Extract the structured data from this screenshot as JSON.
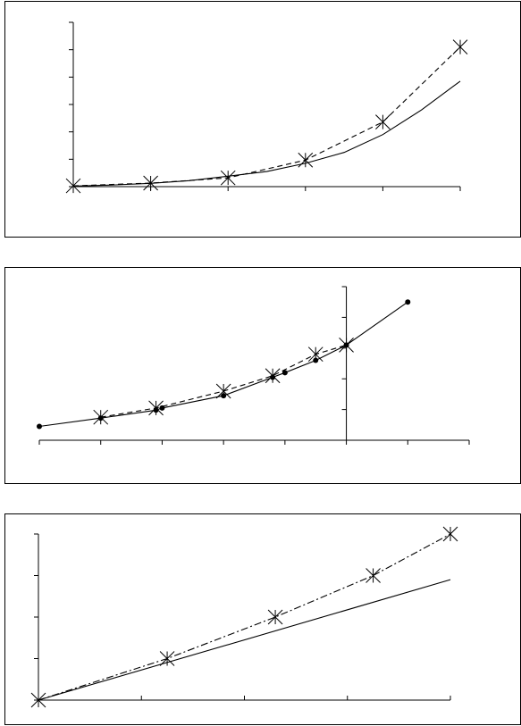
{
  "chart_data": [
    {
      "type": "line",
      "title": "",
      "xlabel": "",
      "ylabel": "",
      "grid": false,
      "legend": "none",
      "xlim": [
        0,
        5
      ],
      "ylim": [
        0,
        6
      ],
      "x_ticks": [
        0,
        1,
        2,
        3,
        4,
        5
      ],
      "y_ticks": [
        0,
        1,
        2,
        3,
        4,
        5,
        6
      ],
      "series": [
        {
          "style": "solid",
          "marker": "none",
          "x": [
            0,
            0.5,
            1,
            1.5,
            2,
            2.5,
            3,
            3.5,
            4,
            4.5,
            5
          ],
          "y": [
            0.02,
            0.06,
            0.12,
            0.22,
            0.38,
            0.55,
            0.85,
            1.25,
            1.9,
            2.8,
            3.85
          ]
        },
        {
          "style": "dashed",
          "marker": "star",
          "x": [
            0,
            1,
            2,
            3,
            4,
            5
          ],
          "y": [
            0.03,
            0.13,
            0.32,
            0.97,
            2.36,
            5.1
          ]
        }
      ]
    },
    {
      "type": "line",
      "title": "",
      "xlabel": "",
      "ylabel": "",
      "grid": false,
      "legend": "none",
      "xlim": [
        -5,
        2
      ],
      "ylim": [
        0,
        5
      ],
      "x_ticks": [
        -5,
        -4,
        -3,
        -2,
        -1,
        0,
        1,
        2
      ],
      "y_ticks": [
        0,
        1,
        2,
        3,
        4,
        5
      ],
      "series": [
        {
          "style": "solid",
          "marker": "dot",
          "x": [
            -5,
            -4,
            -3.1,
            -3,
            -2,
            -1.2,
            -1,
            -0.5,
            0,
            1
          ],
          "y": [
            0.45,
            0.72,
            0.98,
            1.05,
            1.45,
            2.05,
            2.2,
            2.6,
            3.1,
            4.5
          ]
        },
        {
          "style": "dashed",
          "marker": "star",
          "x": [
            -4,
            -3.1,
            -2,
            -1.2,
            -0.5,
            0
          ],
          "y": [
            0.75,
            1.05,
            1.6,
            2.1,
            2.8,
            3.1
          ]
        }
      ]
    },
    {
      "type": "line",
      "title": "",
      "xlabel": "",
      "ylabel": "",
      "grid": false,
      "legend": "none",
      "xlim": [
        0,
        4
      ],
      "ylim": [
        -4,
        0
      ],
      "x_ticks": [
        0,
        1,
        2,
        3,
        4
      ],
      "y_ticks": [
        0,
        -1,
        -2,
        -3,
        -4
      ],
      "series": [
        {
          "style": "solid",
          "marker": "none",
          "x": [
            0,
            4
          ],
          "y": [
            0,
            -2.9
          ]
        },
        {
          "style": "dashdot",
          "marker": "star",
          "x": [
            0,
            1.25,
            2.3,
            3.25,
            4
          ],
          "y": [
            0,
            -1.0,
            -2.0,
            -3.0,
            -4.0
          ]
        }
      ]
    }
  ]
}
